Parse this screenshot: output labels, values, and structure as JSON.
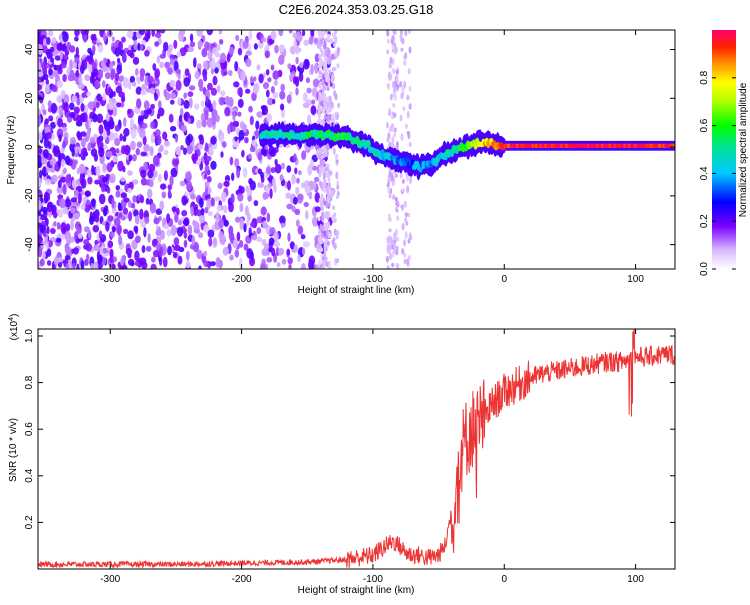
{
  "title": "C2E6.2024.353.03.25.G18",
  "chart_data": [
    {
      "type": "heatmap",
      "xlabel": "Height of straight line (km)",
      "ylabel": "Frequency (Hz)",
      "xlim": [
        -355,
        130
      ],
      "ylim": [
        -50,
        48
      ],
      "xticks": [
        -300,
        -200,
        -100,
        0,
        100
      ],
      "yticks": [
        -40,
        -20,
        0,
        20,
        40
      ],
      "xtick_labels": [
        "-300",
        "-200",
        "-100",
        "0",
        "100"
      ],
      "ytick_labels": [
        "-40",
        "-20",
        "0",
        "20",
        "40"
      ],
      "colorbar": {
        "label": "Normalized spectral amplitude",
        "range": [
          0,
          1
        ],
        "ticks": [
          0.0,
          0.2,
          0.4,
          0.6,
          0.8
        ],
        "tick_labels": [
          "0.0",
          "0.2",
          "0.4",
          "0.6",
          "0.8"
        ]
      },
      "signal_track": [
        {
          "x": -185,
          "f": 5,
          "a": 0.45
        },
        {
          "x": -160,
          "f": 5,
          "a": 0.5
        },
        {
          "x": -140,
          "f": 5,
          "a": 0.55
        },
        {
          "x": -120,
          "f": 4,
          "a": 0.55
        },
        {
          "x": -105,
          "f": 1,
          "a": 0.5
        },
        {
          "x": -95,
          "f": -3,
          "a": 0.45
        },
        {
          "x": -85,
          "f": -5,
          "a": 0.4
        },
        {
          "x": -75,
          "f": -6,
          "a": 0.35
        },
        {
          "x": -65,
          "f": -8,
          "a": 0.35
        },
        {
          "x": -55,
          "f": -7,
          "a": 0.4
        },
        {
          "x": -45,
          "f": -3,
          "a": 0.45
        },
        {
          "x": -35,
          "f": -1,
          "a": 0.55
        },
        {
          "x": -25,
          "f": 1,
          "a": 0.7
        },
        {
          "x": -15,
          "f": 2,
          "a": 0.8
        },
        {
          "x": -5,
          "f": 1,
          "a": 0.85
        },
        {
          "x": 0,
          "f": 0.5,
          "a": 0.95
        },
        {
          "x": 50,
          "f": 0.5,
          "a": 0.97
        },
        {
          "x": 100,
          "f": 0.5,
          "a": 0.97
        },
        {
          "x": 130,
          "f": 0.5,
          "a": 0.95
        }
      ]
    },
    {
      "type": "line",
      "xlabel": "Height of straight line (km)",
      "ylabel": "SNR (10 * v/v)",
      "y_multiplier": "(x10",
      "y_multiplier_exp": "4",
      "xlim": [
        -355,
        130
      ],
      "ylim": [
        0,
        1.03
      ],
      "xticks": [
        -300,
        -200,
        -100,
        0,
        100
      ],
      "yticks": [
        0.2,
        0.4,
        0.6,
        0.8,
        1.0
      ],
      "xtick_labels": [
        "-300",
        "-200",
        "-100",
        "0",
        "100"
      ],
      "ytick_labels": [
        "0.2",
        "0.4",
        "0.6",
        "0.8",
        "1.0"
      ],
      "series": [
        {
          "color": "#ee3333",
          "x": [
            -355,
            -300,
            -250,
            -200,
            -150,
            -120,
            -110,
            -100,
            -95,
            -90,
            -85,
            -80,
            -75,
            -70,
            -65,
            -60,
            -55,
            -50,
            -45,
            -40,
            -35,
            -30,
            -25,
            -20,
            -15,
            -10,
            -5,
            0,
            10,
            20,
            30,
            40,
            50,
            60,
            70,
            80,
            90,
            95,
            100,
            110,
            120,
            130
          ],
          "y": [
            0.02,
            0.02,
            0.02,
            0.025,
            0.03,
            0.04,
            0.05,
            0.06,
            0.08,
            0.1,
            0.12,
            0.1,
            0.07,
            0.06,
            0.06,
            0.05,
            0.05,
            0.06,
            0.1,
            0.25,
            0.45,
            0.55,
            0.6,
            0.62,
            0.65,
            0.7,
            0.73,
            0.76,
            0.79,
            0.82,
            0.84,
            0.85,
            0.86,
            0.87,
            0.88,
            0.89,
            0.89,
            0.9,
            0.91,
            0.91,
            0.92,
            0.92
          ]
        }
      ]
    }
  ]
}
